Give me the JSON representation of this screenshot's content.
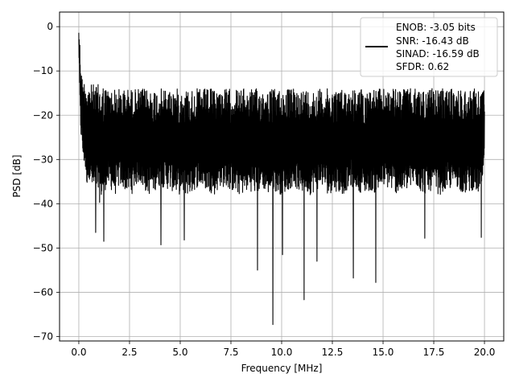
{
  "chart_data": {
    "type": "line",
    "title": "",
    "xlabel": "Frequency [MHz]",
    "ylabel": "PSD [dB]",
    "xlim": [
      -0.95,
      20.95
    ],
    "ylim": [
      -71,
      3.3
    ],
    "x_ticks": [
      0.0,
      2.5,
      5.0,
      7.5,
      10.0,
      12.5,
      15.0,
      17.5,
      20.0
    ],
    "x_tick_labels": [
      "0.0",
      "2.5",
      "5.0",
      "7.5",
      "10.0",
      "12.5",
      "15.0",
      "17.5",
      "20.0"
    ],
    "y_ticks": [
      0,
      -10,
      -20,
      -30,
      -40,
      -50,
      -60,
      -70
    ],
    "y_tick_labels": [
      "0",
      "−10",
      "−20",
      "−30",
      "−40",
      "−50",
      "−60",
      "−70"
    ],
    "grid": true,
    "line_color": "#000000",
    "legend_placement": "top-right",
    "legend_lines": [
      "ENOB: -3.05 bits",
      "SNR: -16.43 dB",
      "SINAD: -16.59 dB",
      "SFDR: 0.62"
    ],
    "series": [
      {
        "x": [
          0,
          0.03,
          0.06,
          0.1,
          0.15,
          0.2,
          0.3,
          0.4,
          0.5,
          0.7,
          0.9,
          1.0,
          1.2,
          1.4,
          1.6,
          1.8,
          2.0,
          2.3,
          2.6,
          2.8,
          3.0,
          3.2,
          3.5,
          4.0,
          4.5,
          5.0,
          5.5,
          5.9,
          6.3,
          6.7,
          7.0,
          7.5,
          7.8,
          8.0,
          8.4,
          8.8,
          9.0,
          9.3,
          9.6,
          10.0,
          10.3,
          10.6,
          11.0,
          11.1,
          11.4,
          11.7,
          12.0,
          12.3,
          12.6,
          13.0,
          13.2,
          13.6,
          14.0,
          14.4,
          14.7,
          15.0,
          15.4,
          15.8,
          16.2,
          16.6,
          17.0,
          17.4,
          17.8,
          18.2,
          18.6,
          19.0,
          19.4,
          19.8,
          19.9,
          20.0
        ],
        "y": [
          -2,
          -8,
          -5,
          -15,
          -12,
          -18,
          -16,
          -22,
          -20,
          -19,
          -21,
          -18,
          -23,
          -20,
          -19,
          -22,
          -21,
          -20,
          -19,
          -22,
          -21,
          -20,
          -22,
          -23,
          -21,
          -24,
          -22,
          -23,
          -22,
          -24,
          -23,
          -22,
          -24,
          -25,
          -23,
          -24,
          -22,
          -25,
          -24,
          -23,
          -22,
          -24,
          -25,
          -23,
          -24,
          -22,
          -23,
          -25,
          -24,
          -23,
          -24,
          -22,
          -25,
          -23,
          -24,
          -22,
          -25,
          -24,
          -23,
          -24,
          -25,
          -23,
          -22,
          -24,
          -25,
          -23,
          -24,
          -22,
          -25,
          -23
        ],
        "upper": [
          0,
          -2,
          -4,
          -8,
          -11,
          -12,
          -12,
          -12,
          -13,
          -13,
          -13,
          -13,
          -13,
          -14,
          -14,
          -14,
          -14,
          -14,
          -14,
          -14,
          -14,
          -14,
          -14,
          -14,
          -14,
          -14,
          -14,
          -14,
          -14,
          -14,
          -14,
          -14,
          -14,
          -14,
          -14,
          -14,
          -14,
          -14,
          -14,
          -14,
          -14,
          -14,
          -14,
          -14,
          -14,
          -14,
          -14,
          -14,
          -14,
          -14,
          -14,
          -14,
          -14,
          -14,
          -14,
          -14,
          -14,
          -14,
          -14,
          -14,
          -14,
          -14,
          -14,
          -14,
          -14,
          -14,
          -14,
          -14,
          -14,
          -14
        ],
        "lower": [
          -6,
          -12,
          -20,
          -25,
          -26,
          -30,
          -32,
          -36,
          -34,
          -38,
          -37,
          -40,
          -38,
          -36,
          -37,
          -38,
          -36,
          -37,
          -38,
          -36,
          -35,
          -37,
          -38,
          -36,
          -37,
          -38,
          -38,
          -36,
          -37,
          -38,
          -36,
          -37,
          -38,
          -38,
          -37,
          -38,
          -36,
          -38,
          -37,
          -38,
          -37,
          -36,
          -38,
          -37,
          -38,
          -37,
          -36,
          -38,
          -37,
          -38,
          -37,
          -36,
          -38,
          -37,
          -38,
          -36,
          -37,
          -38,
          -37,
          -36,
          -38,
          -37,
          -38,
          -37,
          -36,
          -38,
          -37,
          -38,
          -36,
          -32
        ]
      }
    ],
    "dips": [
      {
        "x": 0.82,
        "y": -46.5
      },
      {
        "x": 1.22,
        "y": -48.5
      },
      {
        "x": 4.05,
        "y": -49.3
      },
      {
        "x": 5.2,
        "y": -48.2
      },
      {
        "x": 8.8,
        "y": -55.0
      },
      {
        "x": 9.55,
        "y": -67.3
      },
      {
        "x": 10.05,
        "y": -51.5
      },
      {
        "x": 11.12,
        "y": -61.7
      },
      {
        "x": 11.75,
        "y": -53.0
      },
      {
        "x": 13.55,
        "y": -56.8
      },
      {
        "x": 14.65,
        "y": -57.8
      },
      {
        "x": 17.05,
        "y": -47.8
      },
      {
        "x": 19.85,
        "y": -47.6
      }
    ]
  }
}
